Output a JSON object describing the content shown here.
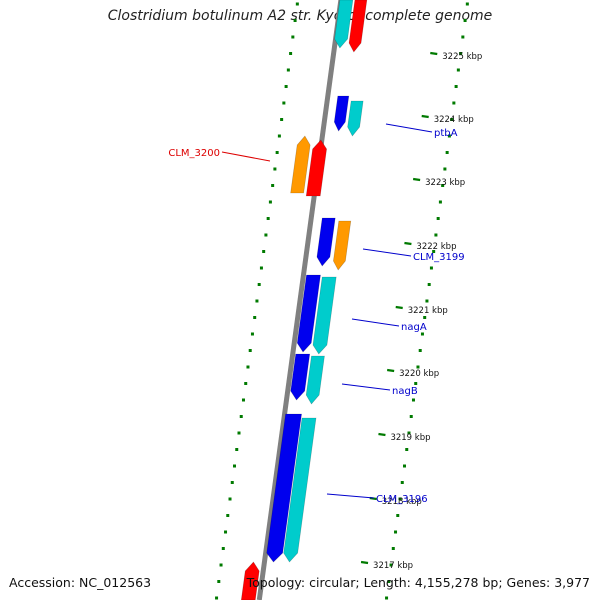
{
  "header": {
    "title": "Clostridium botulinum A2 str. Kyoto, complete genome"
  },
  "footer": {
    "accession": "Accession: NC_012563",
    "summary": "Topology: circular; Length: 4,155,278 bp; Genes: 3,977"
  },
  "colors": {
    "backbone": "#808080",
    "tick": "#007a00",
    "forward_gene": "#0000ee",
    "forward_gene_alt": "#00cccc",
    "reverse_gene": "#ff0000",
    "reverse_gene_alt": "#ff9900",
    "label_forward": "#0000cc",
    "label_reverse": "#dd0000"
  },
  "ticks": [
    "3225 kbp",
    "3224 kbp",
    "3223 kbp",
    "3222 kbp",
    "3221 kbp",
    "3220 kbp",
    "3219 kbp",
    "3218 kbp",
    "3217 kbp"
  ],
  "gene_labels": [
    "ptbA",
    "CLM_3200",
    "CLM_3199",
    "nagA",
    "nagB",
    "CLM_3196"
  ]
}
